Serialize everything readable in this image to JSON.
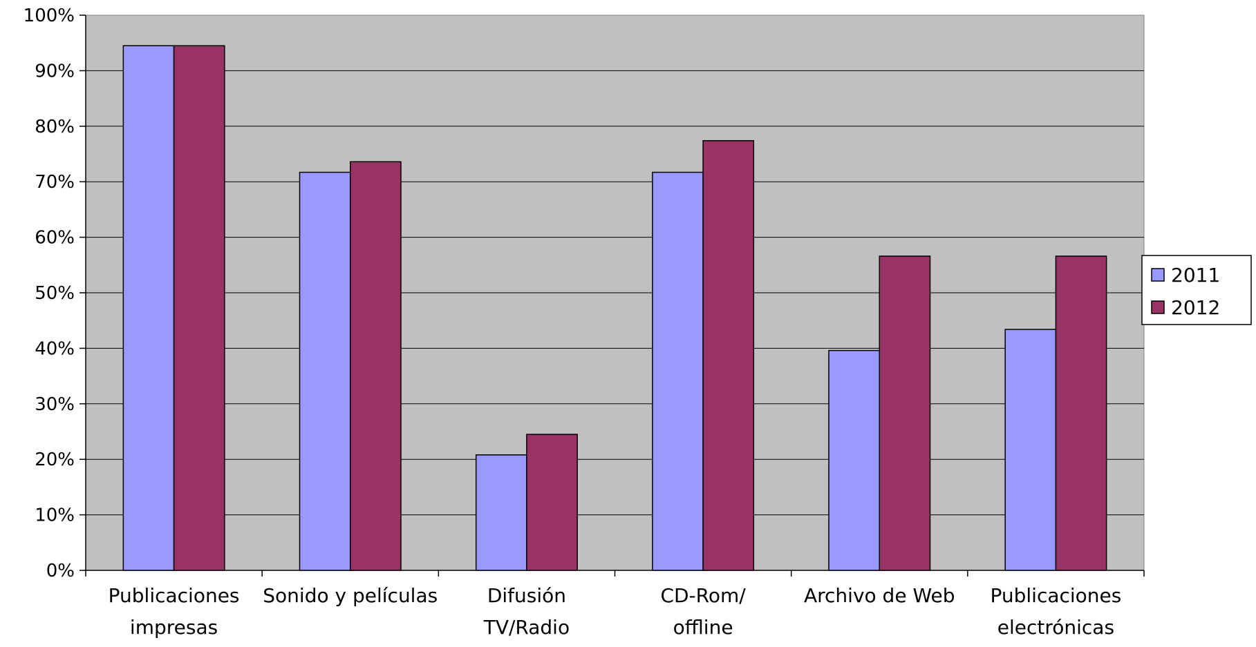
{
  "chart_data": {
    "type": "bar",
    "categories": [
      [
        "Publicaciones",
        "impresas"
      ],
      [
        "Sonido y películas"
      ],
      [
        "Difusión",
        "TV/Radio"
      ],
      [
        "CD-Rom/",
        "offline"
      ],
      [
        "Archivo de Web"
      ],
      [
        "Publicaciones",
        "electrónicas"
      ]
    ],
    "series": [
      {
        "name": "2011",
        "values": [
          94.5,
          71.7,
          20.8,
          71.7,
          39.6,
          43.4
        ],
        "color": "#9999ff"
      },
      {
        "name": "2012",
        "values": [
          94.5,
          73.6,
          24.5,
          77.4,
          56.6,
          56.6
        ],
        "color": "#993366"
      }
    ],
    "yticks": [
      "0%",
      "10%",
      "20%",
      "30%",
      "40%",
      "50%",
      "60%",
      "70%",
      "80%",
      "90%",
      "100%"
    ],
    "ylim": [
      0,
      100
    ],
    "grid": true,
    "plot_background": "#c0c0c0",
    "legend_position": "right"
  }
}
